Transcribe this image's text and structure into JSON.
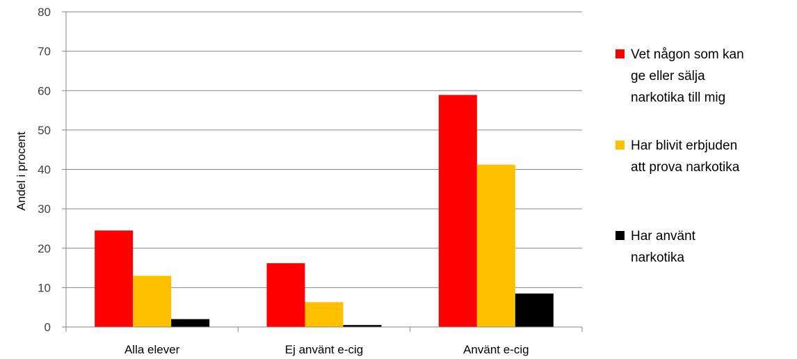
{
  "chart_data": {
    "type": "bar",
    "title": "",
    "xlabel": "",
    "ylabel": "Andel i procent",
    "ylim": [
      0,
      80
    ],
    "yticks": [
      0,
      10,
      20,
      30,
      40,
      50,
      60,
      70,
      80
    ],
    "grid": true,
    "legend_position": "right",
    "categories": [
      "Alla elever",
      "Ej använt e-cig",
      "Använt e-cig"
    ],
    "series": [
      {
        "name": "Vet någon som kan ge eller sälja narkotika till mig",
        "legend_lines": [
          "Vet någon som kan",
          "ge eller sälja",
          "narkotika till mig"
        ],
        "color": "#FF0000",
        "values": [
          24.5,
          16.2,
          58.9
        ]
      },
      {
        "name": "Har blivit erbjuden att prova narkotika",
        "legend_lines": [
          "Har blivit erbjuden",
          "att prova narkotika"
        ],
        "color": "#FFC000",
        "values": [
          13.0,
          6.3,
          41.2
        ]
      },
      {
        "name": "Har använt narkotika",
        "legend_lines": [
          "Har använt",
          "narkotika"
        ],
        "color": "#000000",
        "values": [
          2.0,
          0.5,
          8.5
        ]
      }
    ]
  }
}
